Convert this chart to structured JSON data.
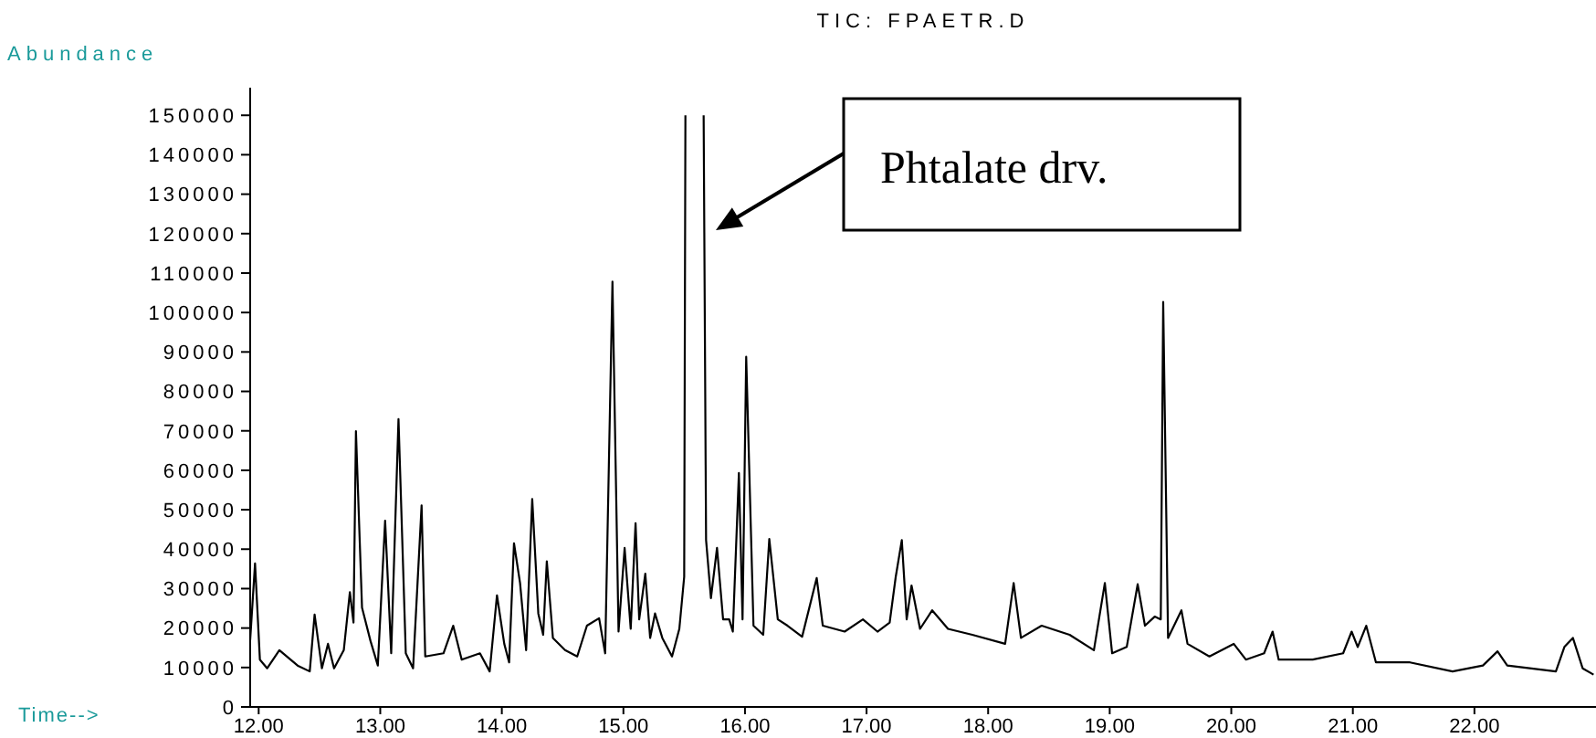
{
  "chart_data": {
    "type": "line",
    "title": "TIC: FPAETR.D",
    "xlabel": "Time-->",
    "ylabel": "Abundance",
    "xlim": [
      11.93,
      23.0
    ],
    "ylim": [
      0,
      157000
    ],
    "xticks": [
      {
        "value": 12,
        "label": "12.00"
      },
      {
        "value": 13,
        "label": "13.00"
      },
      {
        "value": 14,
        "label": "14.00"
      },
      {
        "value": 15,
        "label": "15.00"
      },
      {
        "value": 16,
        "label": "16.00"
      },
      {
        "value": 17,
        "label": "17.00"
      },
      {
        "value": 18,
        "label": "18.00"
      },
      {
        "value": 19,
        "label": "19.00"
      },
      {
        "value": 20,
        "label": "20.00"
      },
      {
        "value": 21,
        "label": "21.00"
      },
      {
        "value": 22,
        "label": "22.00"
      }
    ],
    "yticks": [
      0,
      10000,
      20000,
      30000,
      40000,
      50000,
      60000,
      70000,
      80000,
      90000,
      100000,
      110000,
      120000,
      130000,
      140000,
      150000
    ],
    "annotations": [
      "Phtalate drv."
    ],
    "series": [
      {
        "color": "#000000",
        "x": [
          11.93,
          11.97,
          12.01,
          12.07,
          12.17,
          12.32,
          12.42,
          12.46,
          12.52,
          12.57,
          12.62,
          12.7,
          12.75,
          12.78,
          12.8,
          12.85,
          12.92,
          12.98,
          13.04,
          13.09,
          13.15,
          13.21,
          13.27,
          13.34,
          13.37,
          13.52,
          13.6,
          13.67,
          13.82,
          13.9,
          13.96,
          14.02,
          14.06,
          14.1,
          14.15,
          14.2,
          14.25,
          14.3,
          14.34,
          14.37,
          14.42,
          14.52,
          14.62,
          14.7,
          14.8,
          14.85,
          14.91,
          14.96,
          15.01,
          15.06,
          15.1,
          15.13,
          15.18,
          15.22,
          15.26,
          15.32,
          15.4,
          15.46,
          15.5,
          15.51,
          15.58,
          15.66,
          15.68,
          15.72,
          15.77,
          15.82,
          15.87,
          15.9,
          15.95,
          15.98,
          16.01,
          16.07,
          16.15,
          16.2,
          16.27,
          16.35,
          16.47,
          16.59,
          16.64,
          16.82,
          16.97,
          17.09,
          17.19,
          17.24,
          17.29,
          17.33,
          17.37,
          17.44,
          17.54,
          17.67,
          17.87,
          18.14,
          18.21,
          18.27,
          18.44,
          18.67,
          18.87,
          18.96,
          19.02,
          19.14,
          19.23,
          19.29,
          19.37,
          19.42,
          19.44,
          19.48,
          19.59,
          19.64,
          19.82,
          20.02,
          20.12,
          20.27,
          20.34,
          20.39,
          20.67,
          20.92,
          20.99,
          21.04,
          21.11,
          21.19,
          21.47,
          21.82,
          22.07,
          22.19,
          22.27,
          22.67,
          22.74,
          22.81,
          22.89,
          22.98
        ],
        "values": [
          17000,
          36400,
          12000,
          9800,
          14400,
          10500,
          9000,
          23400,
          9800,
          16000,
          9800,
          14400,
          29100,
          21400,
          69900,
          25200,
          16700,
          10500,
          47200,
          13600,
          73000,
          13600,
          9800,
          51100,
          12800,
          13600,
          20600,
          12000,
          13600,
          9000,
          28300,
          16000,
          11300,
          41500,
          31400,
          14400,
          52700,
          23700,
          18300,
          36900,
          17500,
          14400,
          12800,
          20600,
          22500,
          13600,
          107800,
          19100,
          40300,
          19800,
          46600,
          22200,
          33800,
          17500,
          23700,
          17500,
          12800,
          19800,
          33000,
          150000,
          null,
          150000,
          42300,
          27600,
          40300,
          22200,
          22200,
          19100,
          59300,
          22200,
          88800,
          20600,
          18300,
          42600,
          22200,
          20600,
          17800,
          32700,
          20600,
          19100,
          22200,
          19100,
          21400,
          33000,
          42300,
          22200,
          30800,
          19800,
          24500,
          19800,
          18300,
          16000,
          31400,
          17500,
          20600,
          18300,
          14400,
          31400,
          13600,
          15200,
          31100,
          20600,
          22900,
          22200,
          102700,
          17500,
          24500,
          16000,
          12800,
          16000,
          12000,
          13600,
          19100,
          12000,
          12000,
          13600,
          19100,
          15200,
          20600,
          11300,
          11300,
          9000,
          10500,
          14100,
          10500,
          9000,
          15200,
          17500,
          9800,
          8200
        ]
      }
    ]
  }
}
